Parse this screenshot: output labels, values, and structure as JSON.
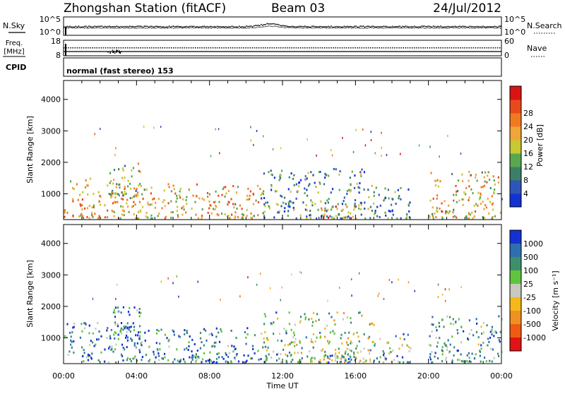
{
  "header": {
    "station": "Zhongshan Station (fitACF)",
    "beam": "Beam 03",
    "date": "24/Jul/2012"
  },
  "noise_panel": {
    "left_label": "N.Sky",
    "right_label": "N.Search",
    "left_ticks": [
      "10^5",
      "10^0"
    ],
    "right_ticks": [
      "10^5",
      "10^0"
    ]
  },
  "freq_panel": {
    "label_line1": "Freq.",
    "label_line2": "[MHz]",
    "left_ticks": [
      "18",
      "8"
    ],
    "right_label": "Nave",
    "right_ticks": [
      "60",
      "0"
    ]
  },
  "cpid_panel": {
    "label": "CPID",
    "text": "normal (fast stereo) 153"
  },
  "chart_data": [
    {
      "type": "heatmap",
      "name": "power",
      "ylabel": "Slant Range [km]",
      "ylim": [
        180,
        4600
      ],
      "y_ticks": [
        1000,
        2000,
        3000,
        4000
      ],
      "x_ticks": [
        "00:00",
        "04:00",
        "08:00",
        "12:00",
        "16:00",
        "20:00",
        "00:00"
      ],
      "xlim_hours": [
        0,
        24
      ],
      "colorbar": {
        "label": "Power [dB]",
        "ticks": [
          "4",
          "8",
          "12",
          "16",
          "20",
          "24",
          "28"
        ],
        "colors": [
          "#1432d2",
          "#2e55b8",
          "#3d7f66",
          "#58a850",
          "#c8c832",
          "#f0a43a",
          "#f07a22",
          "#e84a1e",
          "#d81414"
        ]
      },
      "scatter_regions": [
        {
          "t": [
            0.0,
            4.0
          ],
          "r": [
            200,
            1500
          ],
          "level": 0.6
        },
        {
          "t": [
            2.5,
            4.2
          ],
          "r": [
            900,
            2000
          ],
          "level": 0.45
        },
        {
          "t": [
            4.0,
            10.8
          ],
          "r": [
            200,
            1300
          ],
          "level": 0.6
        },
        {
          "t": [
            10.8,
            12.7
          ],
          "r": [
            200,
            1800
          ],
          "level": 0.3
        },
        {
          "t": [
            12.7,
            17.0
          ],
          "r": [
            200,
            1800
          ],
          "level": 0.3
        },
        {
          "t": [
            14.0,
            16.0
          ],
          "r": [
            200,
            600
          ],
          "level": 0.75
        },
        {
          "t": [
            17.0,
            19.0
          ],
          "r": [
            200,
            1200
          ],
          "level": 0.25
        },
        {
          "t": [
            20.0,
            24.0
          ],
          "r": [
            200,
            1700
          ],
          "level": 0.55
        }
      ]
    },
    {
      "type": "heatmap",
      "name": "velocity",
      "ylabel": "Slant Range [km]",
      "ylim": [
        180,
        4600
      ],
      "y_ticks": [
        1000,
        2000,
        3000,
        4000
      ],
      "x_ticks": [
        "00:00",
        "04:00",
        "08:00",
        "12:00",
        "16:00",
        "20:00",
        "00:00"
      ],
      "xlim_hours": [
        0,
        24
      ],
      "xlabel": "Time UT",
      "colorbar": {
        "label": "Velocity [m s⁻¹]",
        "ticks": [
          "1000",
          "500",
          "100",
          "25",
          "-25",
          "-100",
          "-500",
          "-1000"
        ],
        "colors": [
          "#1432d2",
          "#2f6fb0",
          "#3d8f6a",
          "#5ec43c",
          "#c8c8c0",
          "#f5b818",
          "#f09020",
          "#f05a14",
          "#e01414"
        ]
      },
      "scatter_regions": [
        {
          "t": [
            0.0,
            4.0
          ],
          "r": [
            200,
            1500
          ],
          "level": 0.25
        },
        {
          "t": [
            2.5,
            4.2
          ],
          "r": [
            900,
            2000
          ],
          "level": 0.2
        },
        {
          "t": [
            4.0,
            10.8
          ],
          "r": [
            200,
            1300
          ],
          "level": 0.2
        },
        {
          "t": [
            10.8,
            12.7
          ],
          "r": [
            200,
            1800
          ],
          "level": 0.35
        },
        {
          "t": [
            12.7,
            17.0
          ],
          "r": [
            200,
            1800
          ],
          "level": 0.45
        },
        {
          "t": [
            14.0,
            16.0
          ],
          "r": [
            200,
            600
          ],
          "level": 0.2
        },
        {
          "t": [
            17.0,
            19.0
          ],
          "r": [
            200,
            1200
          ],
          "level": 0.35
        },
        {
          "t": [
            20.0,
            24.0
          ],
          "r": [
            200,
            1700
          ],
          "level": 0.3
        }
      ]
    }
  ]
}
